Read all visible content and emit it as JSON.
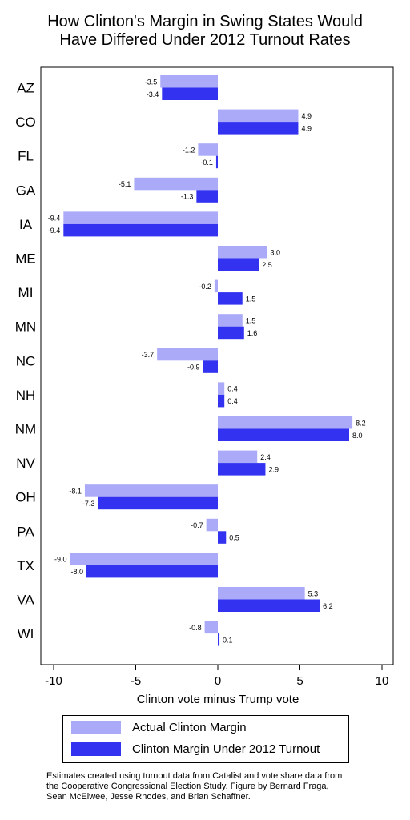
{
  "title_lines": [
    "How Clinton's Margin in Swing States Would",
    "Have Differed Under 2012 Turnout Rates"
  ],
  "legend": {
    "actual": "Actual Clinton Margin",
    "turnout2012": "Clinton Margin Under 2012 Turnout"
  },
  "footnote_lines": [
    "Estimates created using turnout data from Catalist and vote share data from",
    "the Cooperative Congressional Election Study. Figure by Bernard Fraga,",
    "Sean McElwee, Jesse Rhodes, and Brian Schaffner."
  ],
  "chart_data": {
    "type": "bar",
    "orientation": "horizontal",
    "title": "How Clinton's Margin in Swing States Would Have Differed Under 2012 Turnout Rates",
    "xlabel": "Clinton vote minus Trump vote",
    "ylabel": "",
    "xlim": [
      -10.5,
      10.7
    ],
    "xticks": [
      -10,
      -5,
      0,
      5,
      10
    ],
    "xtick_labels": [
      "-10",
      "-5",
      "0",
      "5",
      "10"
    ],
    "categories": [
      "AZ",
      "CO",
      "FL",
      "GA",
      "IA",
      "ME",
      "MI",
      "MN",
      "NC",
      "NH",
      "NM",
      "NV",
      "OH",
      "PA",
      "TX",
      "VA",
      "WI"
    ],
    "series": [
      {
        "name": "Actual Clinton Margin",
        "color": "#aaaaf8",
        "values": [
          -3.5,
          4.9,
          -1.2,
          -5.1,
          -9.4,
          3.0,
          -0.2,
          1.5,
          -3.7,
          0.4,
          8.2,
          2.4,
          -8.1,
          -0.7,
          -9.0,
          5.3,
          -0.8
        ],
        "labels": [
          "-3.5",
          "4.9",
          "-1.2",
          "-5.1",
          "-9.4",
          "3.0",
          "-0.2",
          "1.5",
          "-3.7",
          "0.4",
          "8.2",
          "2.4",
          "-8.1",
          "-0.7",
          "-9.0",
          "5.3",
          "-0.8"
        ]
      },
      {
        "name": "Clinton Margin Under 2012 Turnout",
        "color": "#3232f0",
        "values": [
          -3.4,
          4.9,
          -0.1,
          -1.3,
          -9.4,
          2.5,
          1.5,
          1.6,
          -0.9,
          0.4,
          8.0,
          2.9,
          -7.3,
          0.5,
          -8.0,
          6.2,
          0.1
        ],
        "labels": [
          "-3.4",
          "4.9",
          "-0.1",
          "-1.3",
          "-9.4",
          "2.5",
          "1.5",
          "1.6",
          "-0.9",
          "0.4",
          "8.0",
          "2.9",
          "-7.3",
          "0.5",
          "-8.0",
          "6.2",
          "0.1"
        ]
      }
    ],
    "grid": false,
    "legend_position": "bottom"
  }
}
